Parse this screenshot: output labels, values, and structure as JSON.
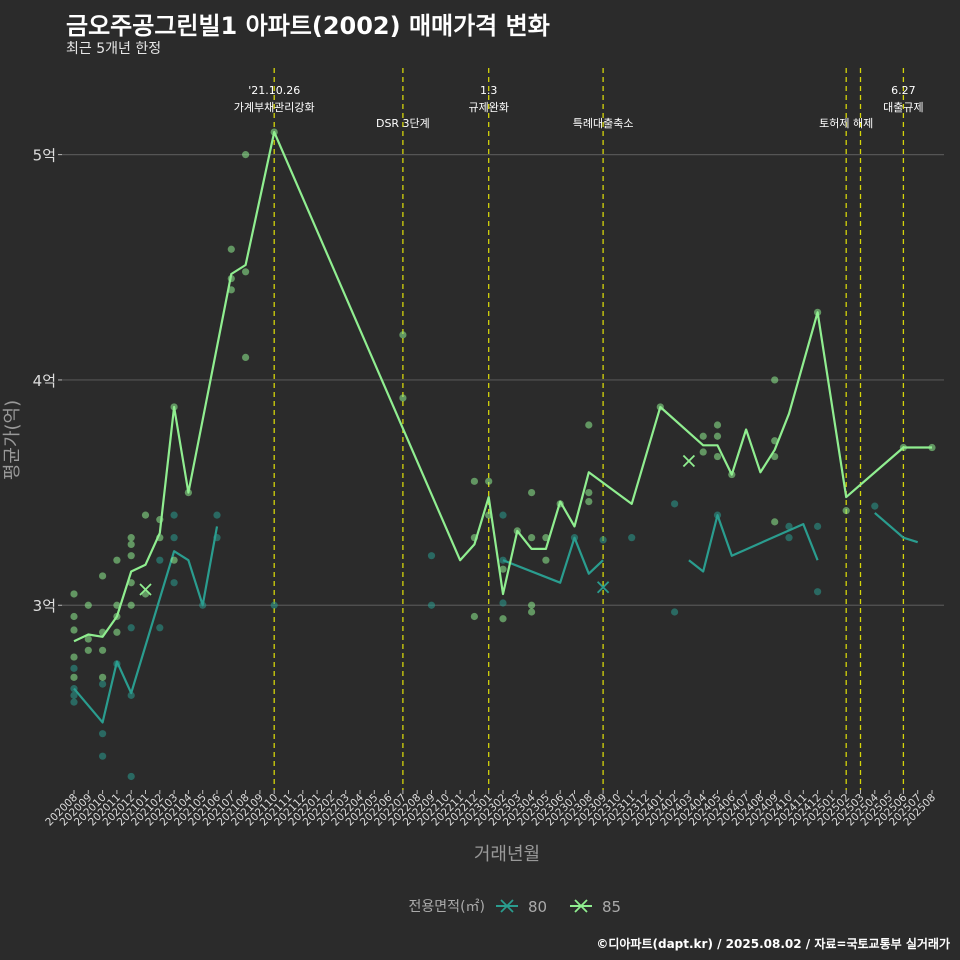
{
  "title": "금오주공그린빌1 아파트(2002) 매매가격 변화",
  "subtitle": "최근 5개년 한정",
  "caption": "©디아파트(dapt.kr) / 2025.08.02 / 자료=국토교통부 실거래가",
  "colors": {
    "background": "#2b2b2b",
    "s80": "#2a9d8f",
    "s85": "#90ee90",
    "vline": "#d4d40a",
    "grid": "#555555"
  },
  "chart_data": {
    "type": "line",
    "xlabel": "거래년월",
    "ylabel": "평균가(억)",
    "x": [
      "202008",
      "202009",
      "202010",
      "202011",
      "202012",
      "202101",
      "202102",
      "202103",
      "202104",
      "202105",
      "202106",
      "202107",
      "202108",
      "202109",
      "202110",
      "202111",
      "202112",
      "202201",
      "202202",
      "202203",
      "202204",
      "202205",
      "202206",
      "202207",
      "202208",
      "202209",
      "202210",
      "202211",
      "202212",
      "202301",
      "202302",
      "202303",
      "202304",
      "202305",
      "202306",
      "202307",
      "202308",
      "202309",
      "202310",
      "202311",
      "202312",
      "202401",
      "202402",
      "202403",
      "202404",
      "202405",
      "202406",
      "202407",
      "202408",
      "202409",
      "202410",
      "202411",
      "202412",
      "202501",
      "202502",
      "202503",
      "202504",
      "202505",
      "202506",
      "202507",
      "202508"
    ],
    "y_ticks": [
      {
        "value": 3,
        "label": "3억"
      },
      {
        "value": 4,
        "label": "4억"
      },
      {
        "value": 5,
        "label": "5억"
      }
    ],
    "ylim": [
      2.18,
      5.42
    ],
    "legend": {
      "title": "전용면적(㎡)",
      "position": "bottom"
    },
    "series": [
      {
        "name": "80",
        "color": "#2a9d8f",
        "segments": [
          [
            [
              0,
              2.63
            ],
            [
              2,
              2.48
            ],
            [
              3,
              2.75
            ],
            [
              4,
              2.61
            ],
            [
              7,
              3.24
            ],
            [
              8,
              3.2
            ],
            [
              9,
              3.0
            ],
            [
              10,
              3.35
            ]
          ],
          [
            [
              30,
              3.2
            ],
            [
              34,
              3.1
            ],
            [
              35,
              3.3
            ],
            [
              36,
              3.14
            ],
            [
              37,
              3.2
            ]
          ],
          [
            [
              43,
              3.2
            ],
            [
              44,
              3.15
            ],
            [
              45,
              3.4
            ],
            [
              46,
              3.22
            ],
            [
              51,
              3.36
            ],
            [
              52,
              3.2
            ]
          ],
          [
            [
              56,
              3.41
            ],
            [
              58,
              3.3
            ],
            [
              59,
              3.28
            ]
          ]
        ],
        "points": [
          [
            0,
            2.57
          ],
          [
            0,
            2.6
          ],
          [
            0,
            2.63
          ],
          [
            0,
            2.72
          ],
          [
            2,
            2.33
          ],
          [
            2,
            2.43
          ],
          [
            2,
            2.65
          ],
          [
            3,
            2.74
          ],
          [
            4,
            2.24
          ],
          [
            4,
            2.6
          ],
          [
            4,
            2.9
          ],
          [
            6,
            2.9
          ],
          [
            6,
            3.2
          ],
          [
            7,
            3.1
          ],
          [
            7,
            3.3
          ],
          [
            7,
            3.4
          ],
          [
            9,
            3.0
          ],
          [
            10,
            3.3
          ],
          [
            10,
            3.4
          ],
          [
            14,
            3.0
          ],
          [
            25,
            3.0
          ],
          [
            25,
            3.22
          ],
          [
            30,
            3.01
          ],
          [
            30,
            3.2
          ],
          [
            30,
            3.4
          ],
          [
            35,
            3.3
          ],
          [
            37,
            3.29
          ],
          [
            39,
            3.3
          ],
          [
            42,
            2.97
          ],
          [
            42,
            3.45
          ],
          [
            45,
            3.4
          ],
          [
            50,
            3.3
          ],
          [
            50,
            3.35
          ],
          [
            52,
            3.06
          ],
          [
            52,
            3.35
          ],
          [
            56,
            3.44
          ]
        ],
        "cross_points": [
          [
            37,
            3.08
          ]
        ]
      },
      {
        "name": "85",
        "color": "#90ee90",
        "segments": [
          [
            [
              0,
              2.84
            ],
            [
              1,
              2.87
            ],
            [
              2,
              2.86
            ],
            [
              3,
              2.95
            ],
            [
              4,
              3.15
            ],
            [
              5,
              3.18
            ],
            [
              6,
              3.32
            ],
            [
              7,
              3.88
            ],
            [
              8,
              3.5
            ],
            [
              11,
              4.47
            ],
            [
              12,
              4.51
            ],
            [
              14,
              5.1
            ],
            [
              27,
              3.2
            ],
            [
              28,
              3.27
            ],
            [
              29,
              3.48
            ],
            [
              30,
              3.05
            ],
            [
              31,
              3.33
            ],
            [
              32,
              3.25
            ],
            [
              33,
              3.25
            ],
            [
              34,
              3.46
            ],
            [
              35,
              3.35
            ],
            [
              36,
              3.59
            ],
            [
              39,
              3.45
            ],
            [
              41,
              3.88
            ],
            [
              44,
              3.71
            ],
            [
              45,
              3.71
            ],
            [
              46,
              3.58
            ],
            [
              47,
              3.78
            ],
            [
              48,
              3.59
            ],
            [
              49,
              3.69
            ],
            [
              50,
              3.85
            ],
            [
              52,
              4.3
            ],
            [
              54,
              3.48
            ],
            [
              58,
              3.7
            ],
            [
              59,
              3.7
            ],
            [
              60,
              3.7
            ]
          ]
        ],
        "points": [
          [
            0,
            2.68
          ],
          [
            0,
            2.77
          ],
          [
            0,
            2.89
          ],
          [
            0,
            2.95
          ],
          [
            0,
            3.05
          ],
          [
            1,
            2.8
          ],
          [
            1,
            2.85
          ],
          [
            1,
            3.0
          ],
          [
            2,
            2.68
          ],
          [
            2,
            2.8
          ],
          [
            2,
            2.88
          ],
          [
            2,
            3.13
          ],
          [
            3,
            2.88
          ],
          [
            3,
            2.95
          ],
          [
            3,
            3.0
          ],
          [
            3,
            3.2
          ],
          [
            4,
            3.0
          ],
          [
            4,
            3.1
          ],
          [
            4,
            3.22
          ],
          [
            4,
            3.27
          ],
          [
            4,
            3.3
          ],
          [
            5,
            3.05
          ],
          [
            5,
            3.4
          ],
          [
            6,
            3.3
          ],
          [
            6,
            3.38
          ],
          [
            7,
            3.2
          ],
          [
            7,
            3.88
          ],
          [
            8,
            3.5
          ],
          [
            11,
            4.4
          ],
          [
            11,
            4.45
          ],
          [
            11,
            4.58
          ],
          [
            12,
            4.1
          ],
          [
            12,
            4.48
          ],
          [
            12,
            5.0
          ],
          [
            14,
            5.1
          ],
          [
            23,
            3.92
          ],
          [
            23,
            4.2
          ],
          [
            28,
            2.95
          ],
          [
            28,
            3.3
          ],
          [
            28,
            3.55
          ],
          [
            29,
            3.4
          ],
          [
            29,
            3.55
          ],
          [
            30,
            2.94
          ],
          [
            30,
            3.16
          ],
          [
            31,
            3.33
          ],
          [
            32,
            2.97
          ],
          [
            32,
            3.0
          ],
          [
            32,
            3.3
          ],
          [
            32,
            3.5
          ],
          [
            33,
            3.2
          ],
          [
            33,
            3.3
          ],
          [
            34,
            3.45
          ],
          [
            36,
            3.46
          ],
          [
            36,
            3.5
          ],
          [
            36,
            3.8
          ],
          [
            41,
            3.88
          ],
          [
            44,
            3.68
          ],
          [
            44,
            3.75
          ],
          [
            45,
            3.66
          ],
          [
            45,
            3.75
          ],
          [
            45,
            3.8
          ],
          [
            46,
            3.58
          ],
          [
            49,
            3.37
          ],
          [
            49,
            3.66
          ],
          [
            49,
            3.73
          ],
          [
            49,
            4.0
          ],
          [
            52,
            4.3
          ],
          [
            54,
            3.42
          ],
          [
            58,
            3.7
          ],
          [
            60,
            3.7
          ]
        ],
        "cross_points": [
          [
            5,
            3.07
          ],
          [
            43,
            3.64
          ]
        ]
      }
    ],
    "annotations": [
      {
        "x": 14,
        "lines": [
          "'21.10.26",
          "가계부채관리강화"
        ]
      },
      {
        "x": 23,
        "lines": [
          "DSR 3단계"
        ]
      },
      {
        "x": 29,
        "lines": [
          "1.3",
          "규제완화"
        ]
      },
      {
        "x": 37,
        "lines": [
          "특례대출축소"
        ]
      },
      {
        "x": 54,
        "lines": [
          "토허제 해제"
        ]
      },
      {
        "x": 55,
        "lines": []
      },
      {
        "x": 58,
        "lines": [
          "6.27",
          "대출규제"
        ]
      }
    ]
  }
}
